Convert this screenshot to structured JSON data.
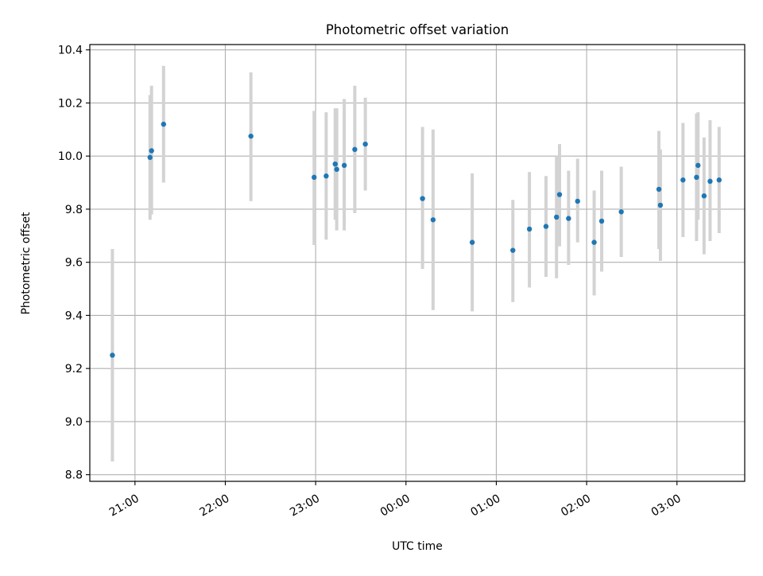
{
  "chart_data": {
    "type": "scatter",
    "title": "Photometric offset variation",
    "xlabel": "UTC time",
    "ylabel": "Photometric offset",
    "x_axis": {
      "type": "time",
      "start": "20:30",
      "end": "24:00+03:45",
      "ticks": [
        {
          "time": "21:00",
          "label": "21:00"
        },
        {
          "time": "22:00",
          "label": "22:00"
        },
        {
          "time": "23:00",
          "label": "23:00"
        },
        {
          "time": "00:00",
          "label": "00:00"
        },
        {
          "time": "01:00",
          "label": "01:00"
        },
        {
          "time": "02:00",
          "label": "02:00"
        },
        {
          "time": "03:00",
          "label": "03:00"
        }
      ]
    },
    "ylim": [
      8.775,
      10.42
    ],
    "yticks": [
      8.8,
      9.0,
      9.2,
      9.4,
      9.6,
      9.8,
      10.0,
      10.2,
      10.4
    ],
    "ytick_labels": [
      "8.8",
      "9.0",
      "9.2",
      "9.4",
      "9.6",
      "9.8",
      "10.0",
      "10.2",
      "10.4"
    ],
    "grid": true,
    "colors": {
      "points": "#1f77b4",
      "errorbars": "#d3d3d3",
      "grid": "#b0b0b0"
    },
    "points": [
      {
        "time": "20:45",
        "y": 9.25,
        "ylow": 8.85,
        "yhigh": 9.65
      },
      {
        "time": "21:10",
        "y": 9.995,
        "ylow": 9.76,
        "yhigh": 10.23
      },
      {
        "time": "21:11",
        "y": 10.02,
        "ylow": 9.78,
        "yhigh": 10.265
      },
      {
        "time": "21:19",
        "y": 10.12,
        "ylow": 9.9,
        "yhigh": 10.34
      },
      {
        "time": "22:17",
        "y": 10.075,
        "ylow": 9.83,
        "yhigh": 10.315
      },
      {
        "time": "22:59",
        "y": 9.92,
        "ylow": 9.665,
        "yhigh": 10.17
      },
      {
        "time": "23:07",
        "y": 9.925,
        "ylow": 9.685,
        "yhigh": 10.165
      },
      {
        "time": "23:13",
        "y": 9.97,
        "ylow": 9.76,
        "yhigh": 10.18
      },
      {
        "time": "23:14",
        "y": 9.95,
        "ylow": 9.72,
        "yhigh": 10.18
      },
      {
        "time": "23:19",
        "y": 9.965,
        "ylow": 9.72,
        "yhigh": 10.215
      },
      {
        "time": "23:26",
        "y": 10.025,
        "ylow": 9.785,
        "yhigh": 10.265
      },
      {
        "time": "23:33",
        "y": 10.045,
        "ylow": 9.87,
        "yhigh": 10.22
      },
      {
        "time": "00:11",
        "y": 9.84,
        "ylow": 9.575,
        "yhigh": 10.11
      },
      {
        "time": "00:18",
        "y": 9.76,
        "ylow": 9.42,
        "yhigh": 10.1
      },
      {
        "time": "00:44",
        "y": 9.675,
        "ylow": 9.415,
        "yhigh": 9.935
      },
      {
        "time": "01:11",
        "y": 9.645,
        "ylow": 9.45,
        "yhigh": 9.835
      },
      {
        "time": "01:22",
        "y": 9.725,
        "ylow": 9.505,
        "yhigh": 9.94
      },
      {
        "time": "01:33",
        "y": 9.735,
        "ylow": 9.545,
        "yhigh": 9.925
      },
      {
        "time": "01:40",
        "y": 9.77,
        "ylow": 9.54,
        "yhigh": 10.0
      },
      {
        "time": "01:42",
        "y": 9.855,
        "ylow": 9.66,
        "yhigh": 10.045
      },
      {
        "time": "01:48",
        "y": 9.765,
        "ylow": 9.59,
        "yhigh": 9.945
      },
      {
        "time": "01:54",
        "y": 9.83,
        "ylow": 9.675,
        "yhigh": 9.99
      },
      {
        "time": "02:05",
        "y": 9.675,
        "ylow": 9.475,
        "yhigh": 9.87
      },
      {
        "time": "02:10",
        "y": 9.755,
        "ylow": 9.565,
        "yhigh": 9.945
      },
      {
        "time": "02:23",
        "y": 9.79,
        "ylow": 9.62,
        "yhigh": 9.96
      },
      {
        "time": "02:48",
        "y": 9.875,
        "ylow": 9.65,
        "yhigh": 10.095
      },
      {
        "time": "02:49",
        "y": 9.815,
        "ylow": 9.605,
        "yhigh": 10.025
      },
      {
        "time": "03:04",
        "y": 9.91,
        "ylow": 9.695,
        "yhigh": 10.125
      },
      {
        "time": "03:13",
        "y": 9.92,
        "ylow": 9.68,
        "yhigh": 10.16
      },
      {
        "time": "03:14",
        "y": 9.965,
        "ylow": 9.76,
        "yhigh": 10.165
      },
      {
        "time": "03:18",
        "y": 9.85,
        "ylow": 9.63,
        "yhigh": 10.07
      },
      {
        "time": "03:22",
        "y": 9.905,
        "ylow": 9.68,
        "yhigh": 10.135
      },
      {
        "time": "03:28",
        "y": 9.91,
        "ylow": 9.71,
        "yhigh": 10.11
      }
    ]
  }
}
